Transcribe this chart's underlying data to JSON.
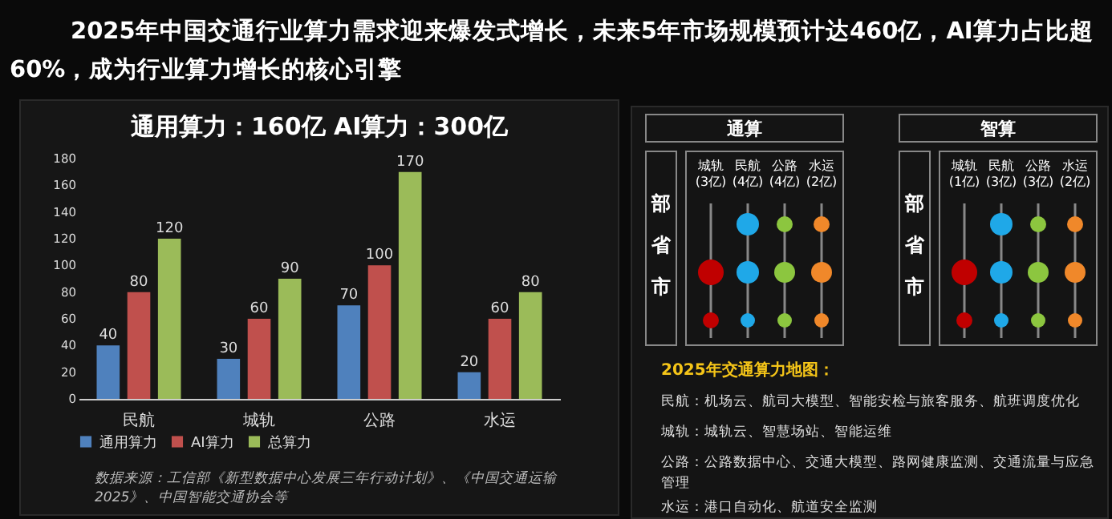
{
  "chart_data": [
    {
      "type": "bar",
      "title": "通用算力：160亿   AI算力：300亿",
      "categories": [
        "民航",
        "城轨",
        "公路",
        "水运"
      ],
      "series": [
        {
          "name": "通用算力",
          "color": "#4f81bd",
          "values": [
            40,
            30,
            70,
            20
          ]
        },
        {
          "name": "AI算力",
          "color": "#c0504d",
          "values": [
            80,
            60,
            100,
            60
          ]
        },
        {
          "name": "总算力",
          "color": "#9bbb59",
          "values": [
            120,
            90,
            170,
            80
          ]
        }
      ],
      "ylim": [
        0,
        180
      ],
      "yticks": [
        0,
        20,
        40,
        60,
        80,
        100,
        120,
        140,
        160,
        180
      ],
      "data_labels": true,
      "legend": "bottom",
      "grid": false,
      "annotations": [
        "2025年中国交通行业算力需求迎来爆发式增长，未来5年市场规模预计达460亿，AI算力占比超60%，成为行业算力增长的核心引擎",
        "数据来源：工信部《新型数据中心发展三年行动计划》、《中国交通运输2025》、中国智能交通协会等"
      ]
    },
    {
      "type": "other",
      "annotations": [
        "通算",
        "智算",
        "城轨\n(3亿)",
        "民航\n(4亿)",
        "公路\n(4亿)",
        "水运\n(2亿)",
        "城轨\n(1亿)",
        "民航\n(3亿)",
        "公路\n(3亿)",
        "水运\n(2亿)",
        "部",
        "省",
        "市",
        "2025年交通算力地图：",
        "民航：机场云、航司大模型、智能安检与旅客服务、航班调度优化",
        "城轨：城轨云、智慧场站、智能运维",
        "公路：公路数据中心、交通大模型、路网健康监测、交通流量与应急管理",
        "水运：港口自动化、航道安全监测"
      ]
    }
  ]
}
